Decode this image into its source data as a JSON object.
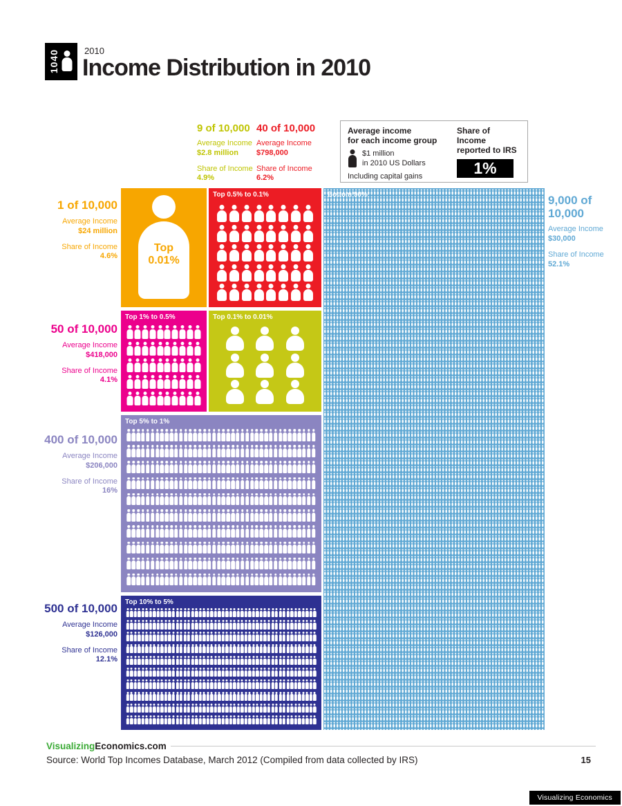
{
  "header": {
    "year": "2010",
    "title": "Income Distribution in 2010",
    "logo_text": "1040"
  },
  "legend": {
    "avg_title_line1": "Average income",
    "avg_title_line2": "for each income group",
    "unit_line1": "$1 million",
    "unit_line2": "in 2010 US Dollars",
    "note": "Including capital gains",
    "share_title_line1": "Share of Income",
    "share_title_line2": "reported to IRS",
    "share_example": "1%"
  },
  "strings": {
    "avg_income": "Average Income",
    "share_income": "Share of Income"
  },
  "groups": {
    "top_0_01": {
      "count_label": "1 of 10,000",
      "avg": "$24 million",
      "share": "4.6%",
      "block_label": "Top 0.01%",
      "figure_line1": "Top",
      "figure_line2": "0.01%"
    },
    "top_0_1_to_0_01": {
      "count_label": "9 of 10,000",
      "avg": "$2.8 million",
      "share": "4.9%",
      "block_label": "Top 0.1% to 0.01%",
      "icons": 9
    },
    "top_0_5_to_0_1": {
      "count_label": "40 of 10,000",
      "avg": "$798,000",
      "share": "6.2%",
      "block_label": "Top 0.5% to 0.1%",
      "icons": 40
    },
    "top_1_to_0_5": {
      "count_label": "50 of 10,000",
      "avg": "$418,000",
      "share": "4.1%",
      "block_label": "Top 1% to 0.5%",
      "icons": 50
    },
    "top_5_to_1": {
      "count_label": "400 of 10,000",
      "avg": "$206,000",
      "share": "16%",
      "block_label": "Top 5% to 1%",
      "icons": 400
    },
    "top_10_to_5": {
      "count_label": "500 of 10,000",
      "avg": "$126,000",
      "share": "12.1%",
      "block_label": "Top 10% to 5%",
      "icons": 500
    },
    "bottom_90": {
      "count_line1": "9,000 of",
      "count_line2": "10,000",
      "avg": "$30,000",
      "share": "52.1%",
      "block_label": "Bottom 90%"
    }
  },
  "footer": {
    "brand_green": "Visualizing",
    "brand_dark": "Economics.com",
    "source": "Source: World Top Incomes Database, March 2012 (Compiled from data collected by IRS)",
    "page_number": "15",
    "badge": "Visualizing Economics"
  },
  "colors": {
    "orange": "#F7A600",
    "red": "#EC1C24",
    "magenta": "#EC008C",
    "olive": "#C5C816",
    "purple": "#8B85C1",
    "navy": "#2E3192",
    "light_blue": "#5FA8D4",
    "brand_green": "#3AAA35",
    "ink": "#231F20"
  },
  "chart_data": {
    "type": "pictogram",
    "title": "Income Distribution in 2010",
    "unit": "1 figure = 1 person per 10,000; incomes in 2010 US Dollars, including capital gains",
    "categories": [
      "Top 0.01%",
      "Top 0.1% to 0.01%",
      "Top 0.5% to 0.1%",
      "Top 1% to 0.5%",
      "Top 5% to 1%",
      "Top 10% to 5%",
      "Bottom 90%"
    ],
    "per_10000": [
      1,
      9,
      40,
      50,
      400,
      500,
      9000
    ],
    "average_income": [
      "$24 million",
      "$2.8 million",
      "$798,000",
      "$418,000",
      "$206,000",
      "$126,000",
      "$30,000"
    ],
    "share_of_income_pct": [
      4.6,
      4.9,
      6.2,
      4.1,
      16,
      12.1,
      52.1
    ],
    "source": "World Top Incomes Database, March 2012 (Compiled from data collected by IRS)"
  }
}
